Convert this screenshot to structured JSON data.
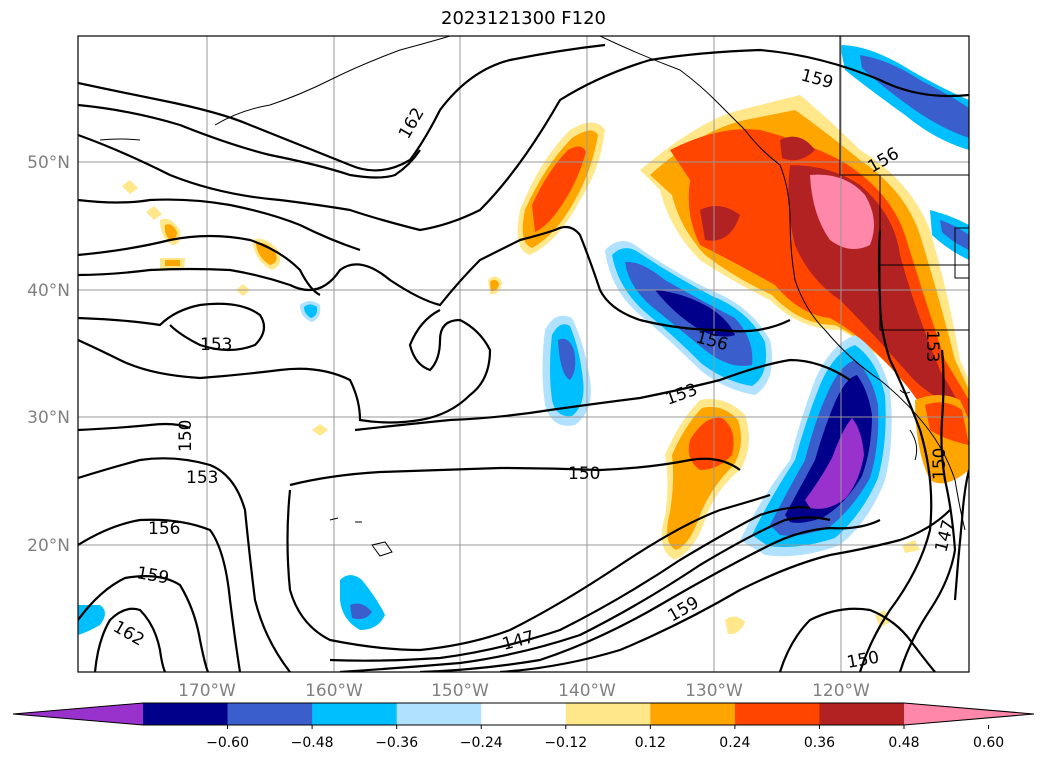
{
  "title": "2023121300 F120",
  "map": {
    "lat_labels": [
      "50°N",
      "40°N",
      "30°N",
      "20°N"
    ],
    "lon_labels": [
      "170°W",
      "160°W",
      "150°W",
      "140°W",
      "130°W",
      "120°W"
    ],
    "contour_labels": [
      "162",
      "159",
      "156",
      "153",
      "150",
      "147"
    ]
  },
  "colorbar": {
    "ticks": [
      "−0.60",
      "−0.48",
      "−0.36",
      "−0.24",
      "−0.12",
      "0.12",
      "0.24",
      "0.36",
      "0.48",
      "0.60"
    ],
    "colors": [
      "#9932CC",
      "#00008B",
      "#3A5FCD",
      "#00BFFF",
      "#B0E2FF",
      "#FFFFFF",
      "#FFE78A",
      "#FFA500",
      "#FF4500",
      "#B22222",
      "#FF88AA"
    ]
  }
}
